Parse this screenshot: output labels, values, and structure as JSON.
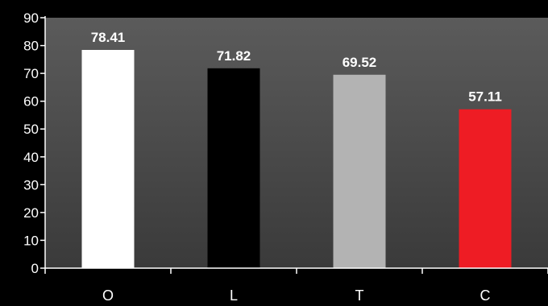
{
  "chart_data": {
    "type": "bar",
    "categories": [
      "O",
      "L",
      "T",
      "C"
    ],
    "values": [
      78.41,
      71.82,
      69.52,
      57.11
    ],
    "value_labels": [
      "78.41",
      "71.82",
      "69.52",
      "57.11"
    ],
    "bar_colors": [
      "#ffffff",
      "#000000",
      "#b3b3b3",
      "#ee1c24"
    ],
    "ylim": [
      0,
      90
    ],
    "yticks": [
      0,
      10,
      20,
      30,
      40,
      50,
      60,
      70,
      80,
      90
    ],
    "ytick_labels": [
      "0",
      "10",
      "20",
      "30",
      "40",
      "50",
      "60",
      "70",
      "80",
      "90"
    ],
    "title": "",
    "xlabel": "",
    "ylabel": "",
    "grid": false,
    "legend": "none",
    "text_color": "#ffffff",
    "axis_color": "#ffffff",
    "plot_background_gradient": [
      "#5b5b5b",
      "#3a3a3a"
    ],
    "page_background": "#000000"
  }
}
